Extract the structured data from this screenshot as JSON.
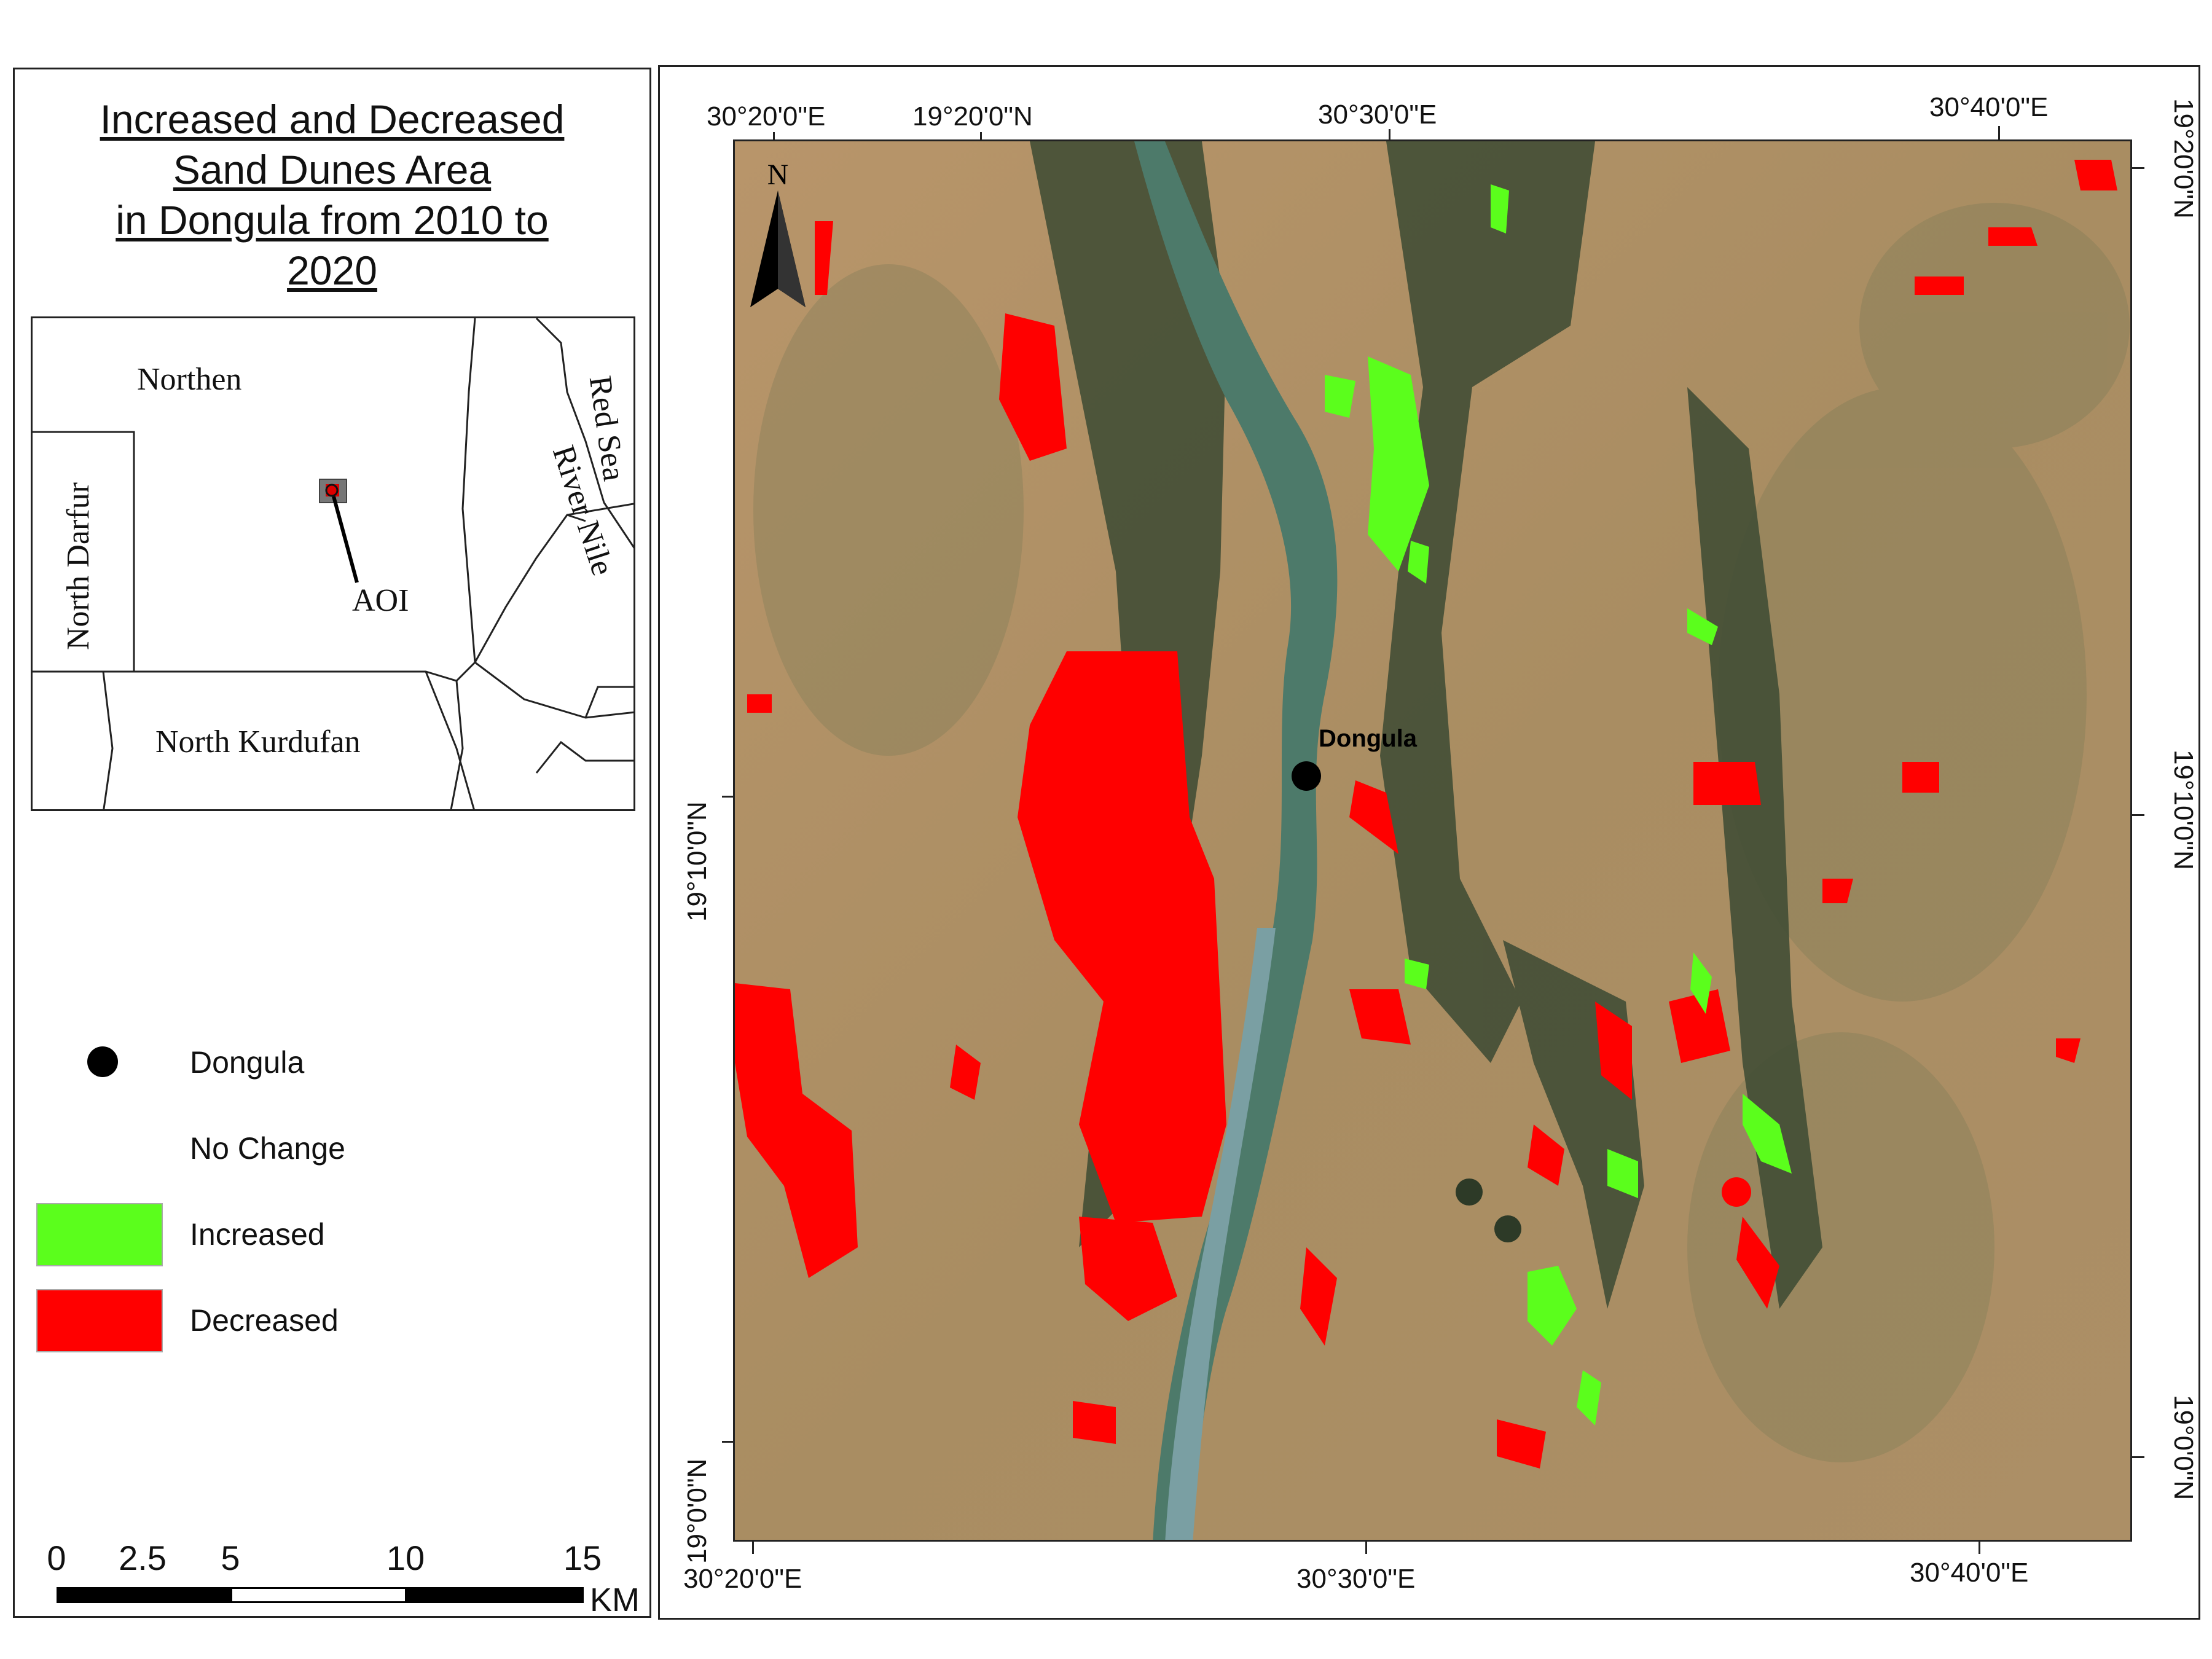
{
  "title_lines": [
    "Increased and Decreased",
    "Sand Dunes Area",
    "in Dongula from 2010 to",
    "2020"
  ],
  "inset": {
    "labels": {
      "northen": "Northen",
      "north_darfur": "North Darfur",
      "river_nile": "River Nile",
      "red_sea": "Red Sea",
      "north_kurdufan": "North Kurdufan",
      "aoi": "AOI"
    }
  },
  "legend": {
    "dongula": "Dongula",
    "no_change": "No Change",
    "increased": "Increased",
    "decreased": "Decreased",
    "colors": {
      "increased": "#5bfe1c",
      "decreased": "#ff0000",
      "point": "#000000"
    }
  },
  "scalebar": {
    "ticks": [
      "0",
      "2.5",
      "5",
      "10",
      "15"
    ],
    "unit": "KM"
  },
  "map": {
    "north_arrow": "N",
    "city_label": "Dongula",
    "top_coords": [
      "30°20'0\"E",
      "19°20'0\"N",
      "30°30'0\"E",
      "30°40'0\"E"
    ],
    "bottom_coords": [
      "30°20'0\"E",
      "30°30'0\"E",
      "30°40'0\"E"
    ],
    "left_coords": [
      "19°10'0\"N",
      "19°0'0\"N"
    ],
    "right_coords": [
      "19°20'0\"N",
      "19°10'0\"N",
      "19°0'0\"N"
    ]
  }
}
